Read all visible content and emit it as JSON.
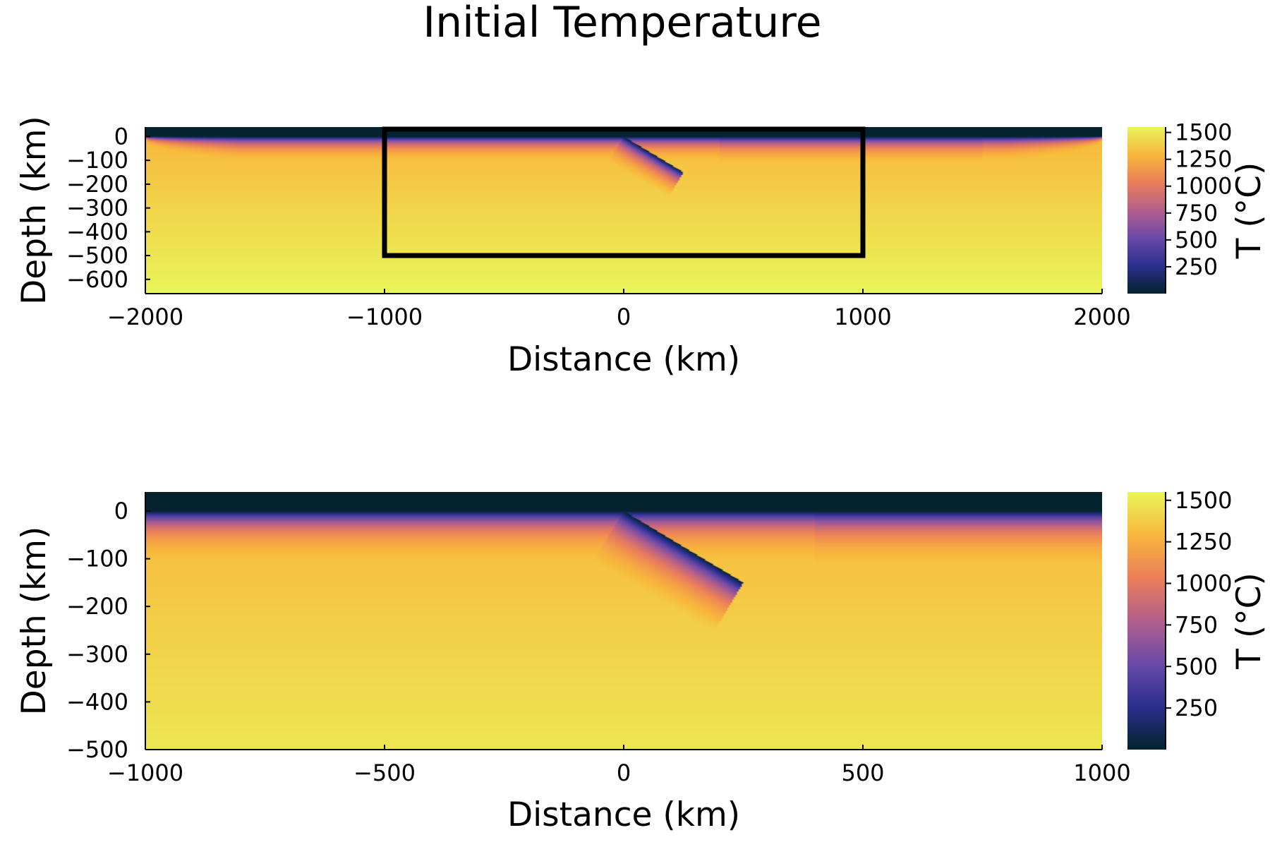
{
  "title": "Initial Temperature",
  "colorscale": {
    "name": "thermal",
    "stops": [
      "#04232f",
      "#2b2f8f",
      "#6b4aa7",
      "#b35f8d",
      "#eb7e5a",
      "#f9b63c",
      "#e9f559"
    ]
  },
  "chart_data": [
    {
      "type": "heatmap",
      "title": "Initial Temperature",
      "xlabel": "Distance (km)",
      "ylabel": "Depth (km)",
      "xlim": [
        -2000,
        2000
      ],
      "ylim": [
        -660,
        40
      ],
      "xticks": [
        -2000,
        -1000,
        0,
        1000,
        2000
      ],
      "xtick_labels": [
        "−2000",
        "−1000",
        "0",
        "1000",
        "2000"
      ],
      "yticks": [
        0,
        -100,
        -200,
        -300,
        -400,
        -500,
        -600
      ],
      "ytick_labels": [
        "0",
        "−100",
        "−200",
        "−300",
        "−400",
        "−500",
        "−600"
      ],
      "colorbar": {
        "label": "T (°C)",
        "range": [
          0,
          1550
        ],
        "ticks": [
          1500,
          1250,
          1000,
          750,
          500,
          250
        ],
        "tick_labels": [
          "1500",
          "1250",
          "1000",
          "750",
          "500",
          "250"
        ]
      },
      "model": {
        "air_thickness_km": 40,
        "lithosphere_base_km": 100,
        "mantle_top_T": 1300,
        "mantle_base_T": 1550,
        "mantle_base_depth_km": 660,
        "steps_x_km": [
          400,
          1500
        ],
        "slab": {
          "trench_x_km": 0,
          "tip": [
            250,
            -150
          ],
          "thickness_km": 120
        }
      },
      "annotation_box": {
        "x": [
          -1000,
          1000
        ],
        "y": [
          -500,
          40
        ]
      }
    },
    {
      "type": "heatmap",
      "title": "",
      "xlabel": "Distance (km)",
      "ylabel": "Depth (km)",
      "xlim": [
        -1000,
        1000
      ],
      "ylim": [
        -500,
        40
      ],
      "xticks": [
        -1000,
        -500,
        0,
        500,
        1000
      ],
      "xtick_labels": [
        "−1000",
        "−500",
        "0",
        "500",
        "1000"
      ],
      "yticks": [
        0,
        -100,
        -200,
        -300,
        -400,
        -500
      ],
      "ytick_labels": [
        "0",
        "−100",
        "−200",
        "−300",
        "−400",
        "−500"
      ],
      "colorbar": {
        "label": "T (°C)",
        "range": [
          0,
          1550
        ],
        "ticks": [
          1500,
          1250,
          1000,
          750,
          500,
          250
        ],
        "tick_labels": [
          "1500",
          "1250",
          "1000",
          "750",
          "500",
          "250"
        ]
      },
      "model": {
        "air_thickness_km": 40,
        "lithosphere_base_km": 100,
        "mantle_top_T": 1300,
        "mantle_base_T": 1550,
        "mantle_base_depth_km": 660,
        "steps_x_km": [
          400,
          1500
        ],
        "slab": {
          "trench_x_km": 0,
          "tip": [
            250,
            -150
          ],
          "thickness_km": 120
        }
      }
    }
  ]
}
